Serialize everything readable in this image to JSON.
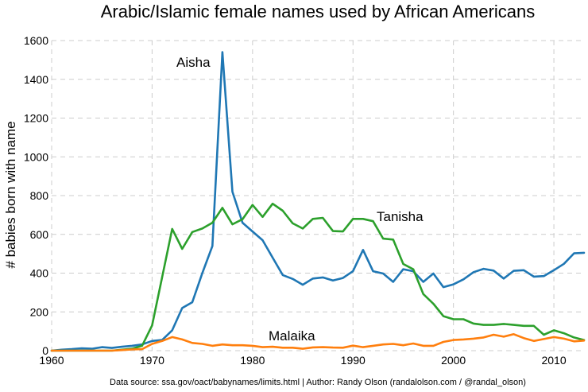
{
  "chart_data": {
    "type": "line",
    "title": "Arabic/Islamic female names used by African Americans",
    "xlabel": "",
    "ylabel": "# babies born with name",
    "xlim": [
      1960,
      2013
    ],
    "ylim": [
      0,
      1600
    ],
    "xticks": [
      1960,
      1970,
      1980,
      1990,
      2000,
      2010
    ],
    "yticks": [
      0,
      200,
      400,
      600,
      800,
      1000,
      1200,
      1400,
      1600
    ],
    "grid": true,
    "x": [
      1960,
      1961,
      1962,
      1963,
      1964,
      1965,
      1966,
      1967,
      1968,
      1969,
      1970,
      1971,
      1972,
      1973,
      1974,
      1975,
      1976,
      1977,
      1978,
      1979,
      1980,
      1981,
      1982,
      1983,
      1984,
      1985,
      1986,
      1987,
      1988,
      1989,
      1990,
      1991,
      1992,
      1993,
      1994,
      1995,
      1996,
      1997,
      1998,
      1999,
      2000,
      2001,
      2002,
      2003,
      2004,
      2005,
      2006,
      2007,
      2008,
      2009,
      2010,
      2011,
      2012,
      2013
    ],
    "series": [
      {
        "name": "Aisha",
        "color": "#1f77b4",
        "values": [
          0,
          5,
          8,
          12,
          10,
          18,
          14,
          20,
          25,
          32,
          50,
          55,
          105,
          220,
          250,
          400,
          540,
          1540,
          820,
          660,
          615,
          570,
          480,
          390,
          370,
          340,
          372,
          378,
          362,
          375,
          410,
          520,
          410,
          398,
          355,
          420,
          410,
          355,
          398,
          328,
          342,
          368,
          405,
          422,
          413,
          372,
          412,
          415,
          382,
          385,
          415,
          448,
          502,
          505
        ]
      },
      {
        "name": "Tanisha",
        "color": "#2ca02c",
        "values": [
          0,
          0,
          0,
          0,
          0,
          0,
          0,
          5,
          10,
          25,
          130,
          380,
          628,
          525,
          612,
          630,
          660,
          737,
          652,
          678,
          752,
          690,
          758,
          722,
          657,
          630,
          680,
          685,
          617,
          615,
          680,
          680,
          668,
          578,
          573,
          447,
          420,
          292,
          242,
          178,
          162,
          162,
          140,
          133,
          133,
          138,
          133,
          128,
          128,
          82,
          105,
          90,
          68,
          55
        ]
      },
      {
        "name": "Malaika",
        "color": "#ff7f0e",
        "values": [
          0,
          0,
          0,
          0,
          0,
          0,
          0,
          3,
          6,
          8,
          35,
          50,
          70,
          58,
          40,
          35,
          25,
          32,
          28,
          28,
          25,
          18,
          20,
          15,
          15,
          10,
          17,
          18,
          16,
          15,
          26,
          18,
          25,
          32,
          35,
          28,
          37,
          25,
          25,
          45,
          55,
          58,
          62,
          68,
          82,
          72,
          85,
          65,
          50,
          60,
          70,
          62,
          48,
          52
        ]
      }
    ],
    "annotations": [
      {
        "text": "Aisha",
        "series": "Aisha"
      },
      {
        "text": "Tanisha",
        "series": "Tanisha"
      },
      {
        "text": "Malaika",
        "series": "Malaika"
      }
    ],
    "source": "Data source: ssa.gov/oact/babynames/limits.html | Author: Randy Olson (randalolson.com / @randal_olson)"
  }
}
